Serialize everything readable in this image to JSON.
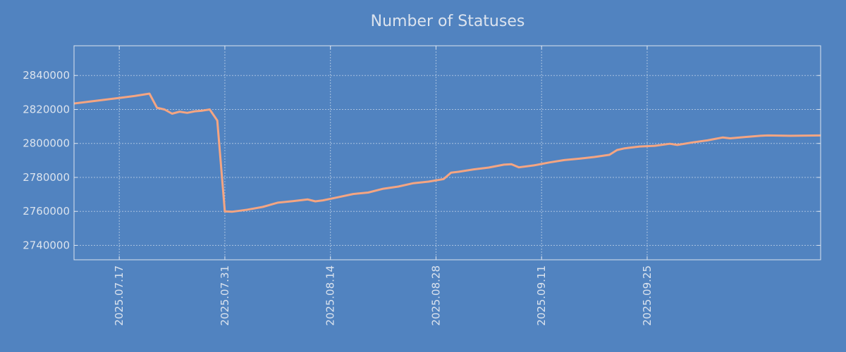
{
  "chart_data": {
    "type": "line",
    "title": "Number of Statuses",
    "xlabel": "",
    "ylabel": "",
    "x_axis": {
      "type": "date",
      "range": [
        "2025-07-11",
        "2025-10-18"
      ],
      "ticks": [
        "2025-07-17",
        "2025-07-31",
        "2025-08-14",
        "2025-08-28",
        "2025-09-11",
        "2025-09-25"
      ],
      "tick_labels": [
        "2025.07.17",
        "2025.07.31",
        "2025.08.14",
        "2025.08.28",
        "2025.09.11",
        "2025.09.25"
      ],
      "tick_label_rotation": "vertical"
    },
    "y_axis": {
      "range": [
        2731500,
        2857500
      ],
      "ticks": [
        2740000,
        2760000,
        2780000,
        2800000,
        2820000,
        2840000
      ],
      "tick_labels": [
        "2740000",
        "2760000",
        "2780000",
        "2800000",
        "2820000",
        "2840000"
      ]
    },
    "grid": true,
    "legend": "none",
    "series": [
      {
        "color": "#f4a582",
        "x": [
          "2025-07-11",
          "2025-07-13",
          "2025-07-15",
          "2025-07-17",
          "2025-07-19",
          "2025-07-21",
          "2025-07-22",
          "2025-07-23",
          "2025-07-24",
          "2025-07-25",
          "2025-07-26",
          "2025-07-27",
          "2025-07-28",
          "2025-07-29",
          "2025-07-30",
          "2025-07-31",
          "2025-08-01",
          "2025-08-02",
          "2025-08-03",
          "2025-08-05",
          "2025-08-07",
          "2025-08-09",
          "2025-08-11",
          "2025-08-12",
          "2025-08-13",
          "2025-08-15",
          "2025-08-17",
          "2025-08-19",
          "2025-08-21",
          "2025-08-23",
          "2025-08-25",
          "2025-08-27",
          "2025-08-29",
          "2025-08-30",
          "2025-08-31",
          "2025-09-02",
          "2025-09-04",
          "2025-09-06",
          "2025-09-07",
          "2025-09-08",
          "2025-09-10",
          "2025-09-12",
          "2025-09-14",
          "2025-09-16",
          "2025-09-18",
          "2025-09-20",
          "2025-09-21",
          "2025-09-22",
          "2025-09-24",
          "2025-09-26",
          "2025-09-28",
          "2025-09-29",
          "2025-10-01",
          "2025-10-03",
          "2025-10-05",
          "2025-10-06",
          "2025-10-08",
          "2025-10-10",
          "2025-10-11",
          "2025-10-14",
          "2025-10-16",
          "2025-10-18"
        ],
        "y": [
          2823500,
          2824600,
          2825700,
          2826800,
          2827900,
          2829300,
          2821000,
          2820000,
          2817500,
          2818700,
          2818000,
          2818900,
          2819300,
          2820000,
          2813500,
          2760000,
          2759800,
          2760400,
          2761000,
          2762600,
          2765100,
          2766000,
          2767000,
          2765900,
          2766500,
          2768300,
          2770200,
          2771100,
          2773300,
          2774600,
          2776600,
          2777500,
          2779000,
          2782800,
          2783300,
          2784700,
          2785800,
          2787500,
          2787800,
          2785900,
          2787100,
          2788800,
          2790200,
          2791000,
          2792000,
          2793300,
          2796100,
          2797100,
          2798200,
          2798600,
          2799800,
          2799100,
          2800600,
          2801800,
          2803500,
          2803000,
          2803800,
          2804500,
          2804700,
          2804500,
          2804600,
          2804700
        ]
      }
    ]
  }
}
